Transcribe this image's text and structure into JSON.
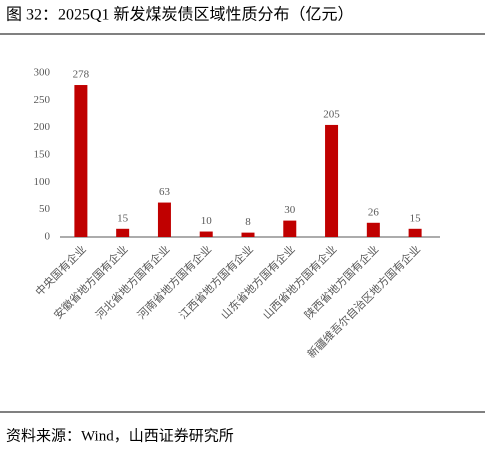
{
  "chart_data": {
    "type": "bar",
    "title": "图 32：2025Q1 新发煤炭债区域性质分布（亿元）",
    "source": "资料来源：Wind，山西证券研究所",
    "categories": [
      "中央国有企业",
      "安徽省地方国有企业",
      "河北省地方国有企业",
      "河南省地方国有企业",
      "江西省地方国有企业",
      "山东省地方国有企业",
      "山西省地方国有企业",
      "陕西省地方国有企业",
      "新疆维吾尔自治区地方国有企业"
    ],
    "values": [
      278,
      15,
      63,
      10,
      8,
      30,
      205,
      26,
      15
    ],
    "color": "#c00000",
    "ylim": [
      0,
      300
    ],
    "yticks": [
      0,
      50,
      100,
      150,
      200,
      250,
      300
    ],
    "grid": false
  }
}
